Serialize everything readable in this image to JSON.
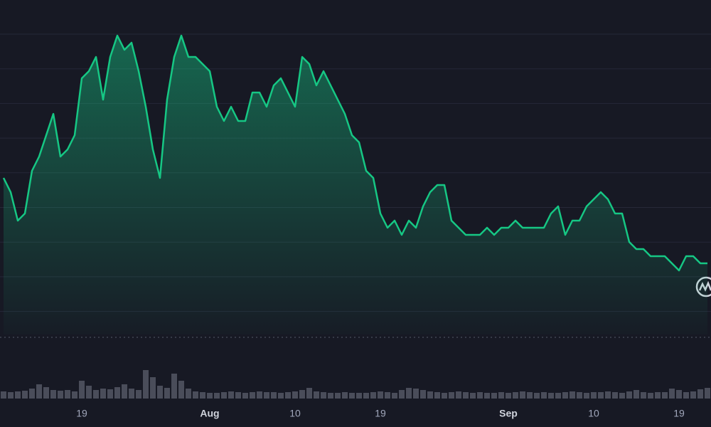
{
  "chart_data": {
    "type": "area",
    "categories": [
      null,
      null,
      null,
      null,
      null,
      null,
      null,
      null,
      null,
      null,
      null,
      "19",
      null,
      null,
      null,
      null,
      null,
      null,
      null,
      null,
      null,
      null,
      null,
      null,
      null,
      null,
      null,
      null,
      null,
      "Aug",
      null,
      null,
      null,
      null,
      null,
      null,
      null,
      null,
      null,
      null,
      null,
      "10",
      null,
      null,
      null,
      null,
      null,
      null,
      null,
      null,
      null,
      null,
      null,
      "19",
      null,
      null,
      null,
      null,
      null,
      null,
      null,
      null,
      null,
      null,
      null,
      null,
      null,
      null,
      null,
      null,
      null,
      "Sep",
      null,
      null,
      null,
      null,
      null,
      null,
      null,
      null,
      null,
      null,
      null,
      "10",
      null,
      null,
      null,
      null,
      null,
      null,
      null,
      null,
      null,
      null,
      null,
      "19",
      null,
      null,
      null,
      null
    ],
    "values": [
      350,
      330,
      290,
      300,
      360,
      380,
      410,
      440,
      380,
      390,
      410,
      490,
      500,
      520,
      460,
      520,
      550,
      530,
      540,
      500,
      450,
      390,
      350,
      460,
      520,
      550,
      520,
      520,
      510,
      500,
      450,
      430,
      450,
      430,
      430,
      470,
      470,
      450,
      480,
      490,
      470,
      450,
      520,
      510,
      480,
      500,
      480,
      460,
      440,
      410,
      400,
      360,
      350,
      300,
      280,
      290,
      270,
      290,
      280,
      310,
      330,
      340,
      340,
      290,
      280,
      270,
      270,
      270,
      280,
      270,
      280,
      280,
      290,
      280,
      280,
      280,
      280,
      300,
      310,
      270,
      290,
      290,
      310,
      320,
      330,
      320,
      300,
      300,
      260,
      250,
      250,
      240,
      240,
      240,
      230,
      220,
      240,
      240,
      230,
      230
    ],
    "volume": [
      10,
      9,
      10,
      11,
      14,
      20,
      16,
      12,
      11,
      12,
      10,
      25,
      18,
      12,
      14,
      13,
      16,
      20,
      14,
      12,
      40,
      30,
      18,
      15,
      35,
      25,
      14,
      10,
      9,
      8,
      8,
      9,
      10,
      9,
      8,
      9,
      10,
      9,
      9,
      8,
      9,
      10,
      12,
      15,
      10,
      9,
      8,
      8,
      9,
      8,
      8,
      8,
      9,
      10,
      9,
      8,
      12,
      15,
      14,
      12,
      10,
      9,
      8,
      9,
      10,
      9,
      8,
      9,
      8,
      8,
      9,
      8,
      9,
      10,
      9,
      8,
      9,
      8,
      8,
      9,
      10,
      9,
      8,
      9,
      9,
      10,
      9,
      8,
      10,
      12,
      9,
      8,
      9,
      9,
      14,
      12,
      9,
      10,
      13,
      15
    ],
    "color": "#16c784",
    "volume_color": "#4a4d5a",
    "ylim": [
      0,
      600
    ],
    "grid": true
  }
}
